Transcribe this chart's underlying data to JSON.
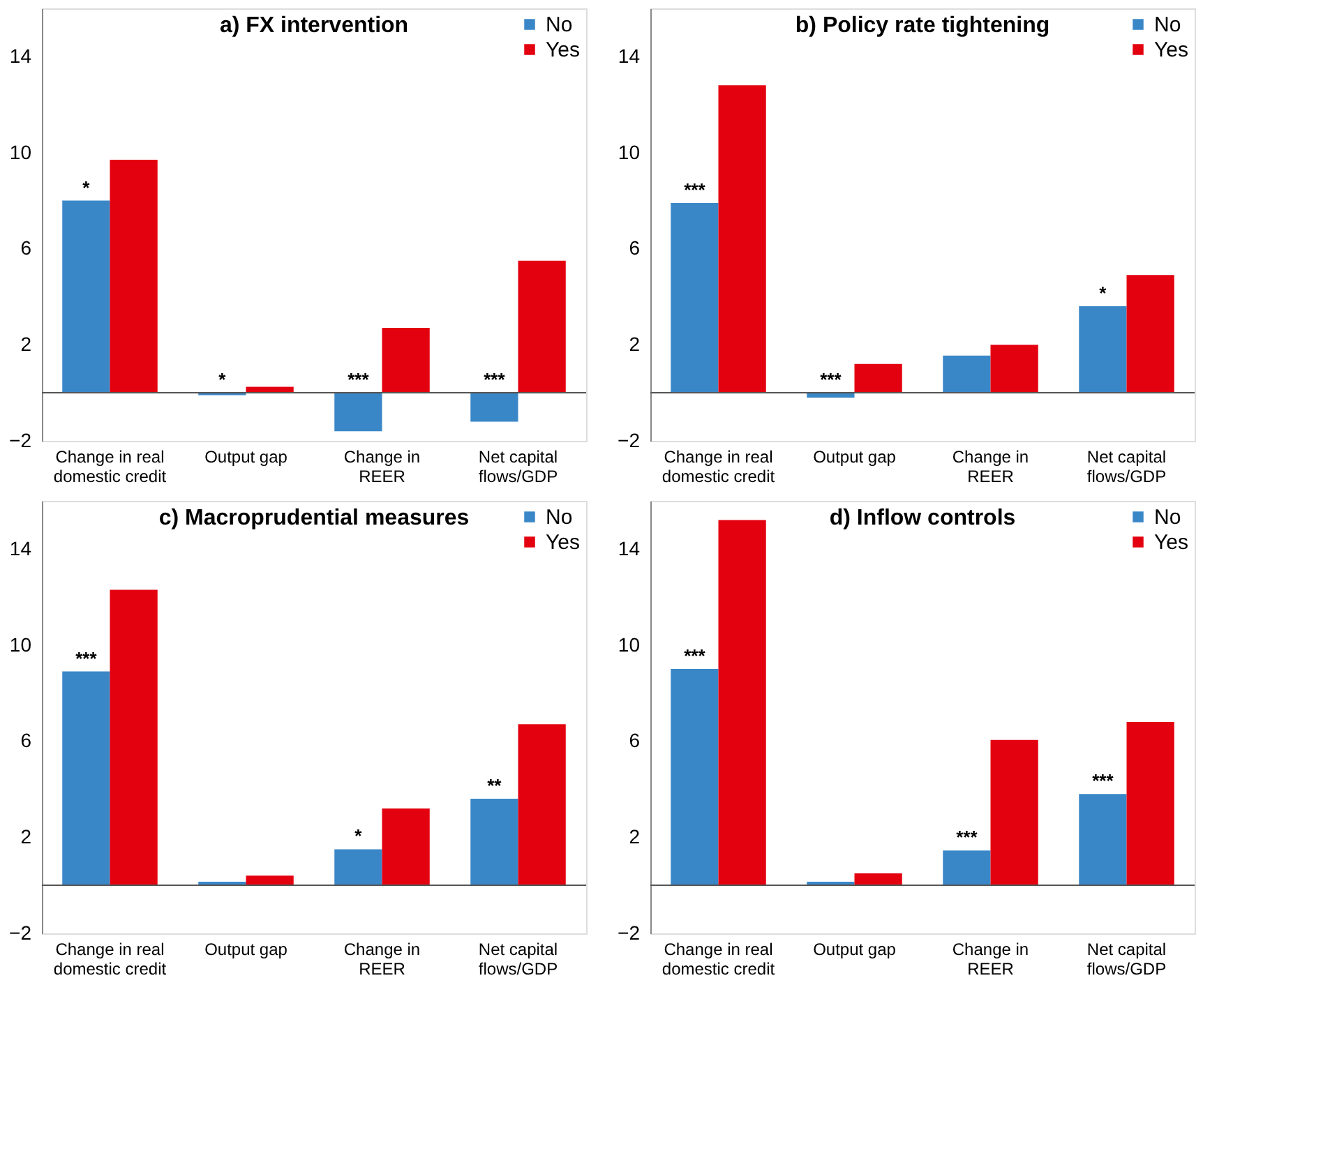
{
  "chart_data": [
    {
      "type": "bar",
      "title": "a) FX intervention",
      "categories": [
        "Change in real domestic credit",
        "Output gap",
        "Change in REER",
        "Net capital flows/GDP"
      ],
      "series": [
        {
          "name": "No",
          "color": "#3a87c8",
          "values": [
            8.0,
            -0.1,
            -1.6,
            -1.2
          ]
        },
        {
          "name": "Yes",
          "color": "#e3000f",
          "values": [
            9.7,
            0.25,
            2.7,
            5.5
          ]
        }
      ],
      "ylim": [
        -2,
        16
      ],
      "yticks": [
        -2,
        2,
        6,
        10,
        14
      ],
      "grid": false,
      "legend": "top right",
      "annotations": [
        {
          "text": "*",
          "x": "Change in real domestic credit",
          "y": 8.0
        },
        {
          "text": "*",
          "x": "Output gap",
          "y": 0
        },
        {
          "text": "***",
          "x": "Change in REER",
          "y": 0
        },
        {
          "text": "***",
          "x": "Net capital flows/GDP",
          "y": 0
        }
      ]
    },
    {
      "type": "bar",
      "title": "b) Policy rate tightening",
      "categories": [
        "Change in real domestic credit",
        "Output gap",
        "Change in REER",
        "Net capital flows/GDP"
      ],
      "series": [
        {
          "name": "No",
          "color": "#3a87c8",
          "values": [
            7.9,
            -0.2,
            1.55,
            3.6
          ]
        },
        {
          "name": "Yes",
          "color": "#e3000f",
          "values": [
            12.8,
            1.2,
            2.0,
            4.9
          ]
        }
      ],
      "ylim": [
        -2,
        16
      ],
      "yticks": [
        -2,
        2,
        6,
        10,
        14
      ],
      "grid": false,
      "legend": "top right",
      "annotations": [
        {
          "text": "***",
          "x": "Change in real domestic credit",
          "y": 7.9
        },
        {
          "text": "***",
          "x": "Output gap",
          "y": 0
        },
        {
          "text": "*",
          "x": "Net capital flows/GDP",
          "y": 3.6
        }
      ]
    },
    {
      "type": "bar",
      "title": "c) Macroprudential measures",
      "categories": [
        "Change in real domestic credit",
        "Output gap",
        "Change in REER",
        "Net capital flows/GDP"
      ],
      "series": [
        {
          "name": "No",
          "color": "#3a87c8",
          "values": [
            8.9,
            0.15,
            1.5,
            3.6
          ]
        },
        {
          "name": "Yes",
          "color": "#e3000f",
          "values": [
            12.3,
            0.4,
            3.2,
            6.7
          ]
        }
      ],
      "ylim": [
        -2,
        16
      ],
      "yticks": [
        -2,
        2,
        6,
        10,
        14
      ],
      "grid": false,
      "legend": "top right",
      "annotations": [
        {
          "text": "***",
          "x": "Change in real domestic credit",
          "y": 8.9
        },
        {
          "text": "*",
          "x": "Change in REER",
          "y": 1.5
        },
        {
          "text": "**",
          "x": "Net capital flows/GDP",
          "y": 3.6
        }
      ]
    },
    {
      "type": "bar",
      "title": "d) Inflow controls",
      "categories": [
        "Change in real domestic credit",
        "Output gap",
        "Change in REER",
        "Net capital flows/GDP"
      ],
      "series": [
        {
          "name": "No",
          "color": "#3a87c8",
          "values": [
            9.0,
            0.15,
            1.45,
            3.8
          ]
        },
        {
          "name": "Yes",
          "color": "#e3000f",
          "values": [
            15.2,
            0.5,
            6.05,
            6.8
          ]
        }
      ],
      "ylim": [
        -2,
        16
      ],
      "yticks": [
        -2,
        2,
        6,
        10,
        14
      ],
      "grid": false,
      "legend": "top right",
      "annotations": [
        {
          "text": "***",
          "x": "Change in real domestic credit",
          "y": 9.0
        },
        {
          "text": "***",
          "x": "Change in REER",
          "y": 1.45
        },
        {
          "text": "***",
          "x": "Net capital flows/GDP",
          "y": 3.8
        }
      ]
    }
  ]
}
